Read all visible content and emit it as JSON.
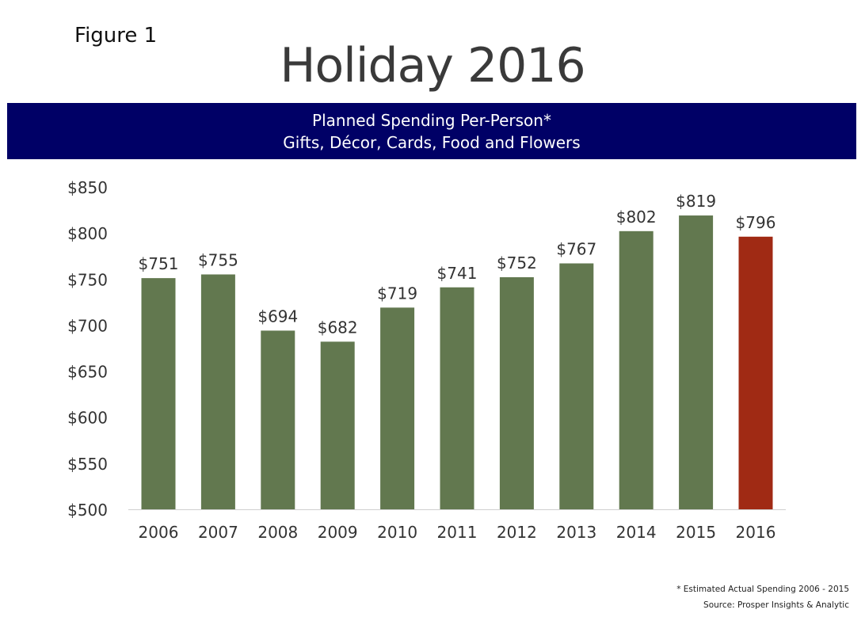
{
  "figure_label": "Figure 1",
  "title": "Holiday 2016",
  "chart_data": {
    "type": "bar",
    "title": "Planned Spending Per-Person*",
    "subtitle": "Gifts, Décor, Cards, Food and Flowers",
    "categories": [
      "2006",
      "2007",
      "2008",
      "2009",
      "2010",
      "2011",
      "2012",
      "2013",
      "2014",
      "2015",
      "2016"
    ],
    "values": [
      751,
      755,
      694,
      682,
      719,
      741,
      752,
      767,
      802,
      819,
      796
    ],
    "data_labels": [
      "$751",
      "$755",
      "$694",
      "$682",
      "$719",
      "$741",
      "$752",
      "$767",
      "$802",
      "$819",
      "$796"
    ],
    "ylim": [
      500,
      850
    ],
    "yticks": [
      500,
      550,
      600,
      650,
      700,
      750,
      800,
      850
    ],
    "ytick_labels": [
      "$500",
      "$550",
      "$600",
      "$650",
      "$700",
      "$750",
      "$800",
      "$850"
    ],
    "xlabel": "",
    "ylabel": "",
    "grid": false,
    "colors": {
      "actual": "#62784f",
      "planned": "#a02a14"
    },
    "highlight_index": 10
  },
  "footnotes": {
    "note": "* Estimated Actual Spending 2006 - 2015",
    "source": "Source: Prosper Insights & Analytic"
  }
}
